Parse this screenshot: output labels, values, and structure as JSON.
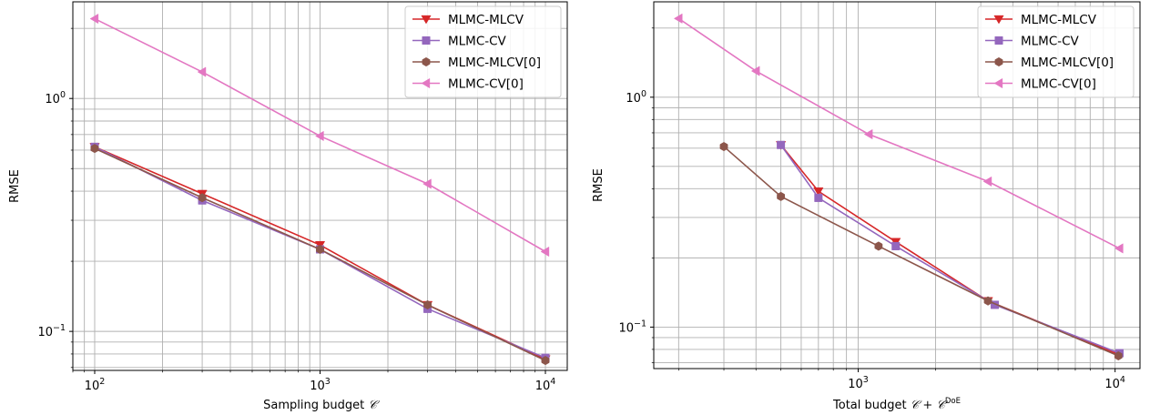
{
  "chart_data": [
    {
      "type": "line",
      "xscale": "log",
      "yscale": "log",
      "xlabel": "Sampling budget",
      "xlabel_symbol": "𝒞",
      "ylabel": "RMSE",
      "xlim": [
        80,
        12500
      ],
      "ylim": [
        0.068,
        2.6
      ],
      "xticks": [
        {
          "value": 100,
          "base": "10",
          "exp": "2"
        },
        {
          "value": 1000,
          "base": "10",
          "exp": "3"
        },
        {
          "value": 10000,
          "base": "10",
          "exp": "4"
        }
      ],
      "yticks": [
        {
          "value": 0.1,
          "base": "10",
          "exp": "−1"
        },
        {
          "value": 1,
          "base": "10",
          "exp": "0"
        }
      ],
      "grid": true,
      "legend_position": "top-right",
      "series": [
        {
          "name": "MLMC-MLCV",
          "color": "#d62728",
          "marker": "triangle-down",
          "x": [
            100,
            300,
            1000,
            3000,
            10000
          ],
          "y": [
            0.62,
            0.39,
            0.235,
            0.13,
            0.076
          ]
        },
        {
          "name": "MLMC-CV",
          "color": "#9467bd",
          "marker": "square",
          "x": [
            100,
            300,
            1000,
            3000,
            10000
          ],
          "y": [
            0.62,
            0.365,
            0.225,
            0.125,
            0.077
          ]
        },
        {
          "name": "MLMC-MLCV[0]",
          "color": "#8c564b",
          "marker": "hexagon",
          "x": [
            100,
            300,
            1000,
            3000,
            10000
          ],
          "y": [
            0.61,
            0.375,
            0.225,
            0.13,
            0.075
          ]
        },
        {
          "name": "MLMC-CV[0]",
          "color": "#e377c2",
          "marker": "triangle-left",
          "x": [
            100,
            300,
            1000,
            3000,
            10000
          ],
          "y": [
            2.2,
            1.3,
            0.69,
            0.43,
            0.22
          ]
        }
      ]
    },
    {
      "type": "line",
      "xscale": "log",
      "yscale": "log",
      "xlabel": "Total budget",
      "xlabel_symbol": "𝒞 + 𝒞",
      "xlabel_superscript": "DoE",
      "ylabel": "RMSE",
      "xlim": [
        160,
        12500
      ],
      "ylim": [
        0.066,
        2.6
      ],
      "xticks": [
        {
          "value": 1000,
          "base": "10",
          "exp": "3"
        },
        {
          "value": 10000,
          "base": "10",
          "exp": "4"
        }
      ],
      "yticks": [
        {
          "value": 0.1,
          "base": "10",
          "exp": "−1"
        },
        {
          "value": 1,
          "base": "10",
          "exp": "0"
        }
      ],
      "grid": true,
      "legend_position": "top-right",
      "series": [
        {
          "name": "MLMC-MLCV",
          "color": "#d62728",
          "marker": "triangle-down",
          "x": [
            500,
            700,
            1400,
            3200,
            10300
          ],
          "y": [
            0.62,
            0.39,
            0.235,
            0.13,
            0.076
          ]
        },
        {
          "name": "MLMC-CV",
          "color": "#9467bd",
          "marker": "square",
          "x": [
            500,
            700,
            1400,
            3400,
            10400
          ],
          "y": [
            0.62,
            0.365,
            0.225,
            0.125,
            0.077
          ]
        },
        {
          "name": "MLMC-MLCV[0]",
          "color": "#8c564b",
          "marker": "hexagon",
          "x": [
            300,
            500,
            1200,
            3200,
            10300
          ],
          "y": [
            0.61,
            0.37,
            0.225,
            0.13,
            0.075
          ]
        },
        {
          "name": "MLMC-CV[0]",
          "color": "#e377c2",
          "marker": "triangle-left",
          "x": [
            200,
            400,
            1100,
            3200,
            10400
          ],
          "y": [
            2.2,
            1.3,
            0.69,
            0.43,
            0.22
          ]
        }
      ]
    }
  ]
}
